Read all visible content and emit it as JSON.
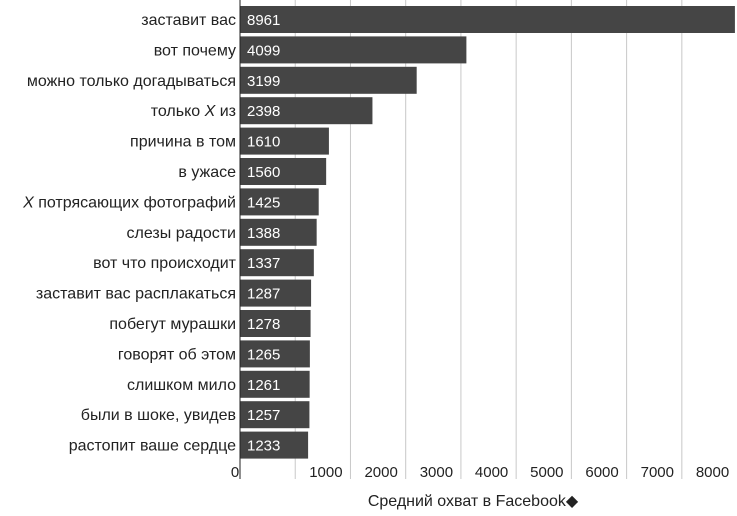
{
  "chart_data": {
    "type": "bar",
    "orientation": "horizontal",
    "categories": [
      "заставит вас",
      "вот почему",
      "можно только догадываться",
      "только X из",
      "причина в том",
      "в ужасе",
      "X потрясающих фотографий",
      "слезы радости",
      "вот что происходит",
      "заставит вас расплакаться",
      "побегут мурашки",
      "говорят об этом",
      "слишком мило",
      "были в шоке, увидев",
      "растопит ваше сердце"
    ],
    "values": [
      8961,
      4099,
      3199,
      2398,
      1610,
      1560,
      1425,
      1388,
      1337,
      1287,
      1278,
      1265,
      1261,
      1257,
      1233
    ],
    "xlabel": "Средний охват в Facebook◆",
    "ylabel": "",
    "title": "",
    "xlim": [
      0,
      9000
    ],
    "xticks": [
      0,
      1000,
      2000,
      3000,
      4000,
      5000,
      6000,
      7000,
      8000
    ],
    "grid": "vertical",
    "bar_color": "#454545",
    "value_label_color": "#ffffff"
  }
}
